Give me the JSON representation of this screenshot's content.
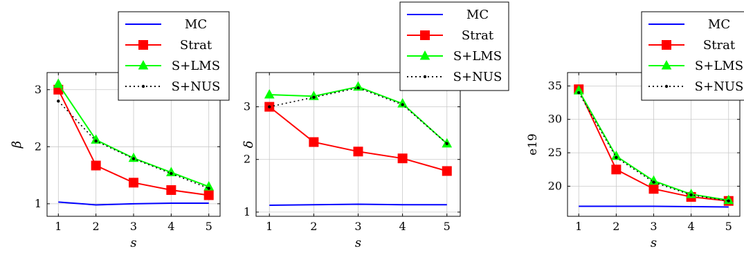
{
  "colors": {
    "MC": "#0000ff",
    "Strat": "#ff0000",
    "S+LMS": "#00ff00",
    "S+NUS": "#000000"
  },
  "legend": [
    "MC",
    "Strat",
    "S+LMS",
    "S+NUS"
  ],
  "chart_data": [
    {
      "type": "line",
      "xlabel": "s",
      "ylabel": "β",
      "x": [
        1,
        2,
        3,
        4,
        5
      ],
      "xlim": [
        0.7,
        5.3
      ],
      "ylim": [
        0.78,
        3.3
      ],
      "yticks": [
        1,
        2,
        3
      ],
      "grid": true,
      "legend_position": "top-right",
      "series": [
        {
          "name": "MC",
          "values": [
            1.03,
            0.98,
            1.0,
            1.01,
            1.01
          ]
        },
        {
          "name": "Strat",
          "values": [
            3.0,
            1.67,
            1.37,
            1.24,
            1.15
          ]
        },
        {
          "name": "S+LMS",
          "values": [
            3.1,
            2.12,
            1.8,
            1.55,
            1.3
          ]
        },
        {
          "name": "S+NUS",
          "values": [
            2.8,
            2.1,
            1.79,
            1.53,
            1.27
          ]
        }
      ]
    },
    {
      "type": "line",
      "xlabel": "s",
      "ylabel": "δ",
      "x": [
        1,
        2,
        3,
        4,
        5
      ],
      "xlim": [
        0.7,
        5.3
      ],
      "ylim": [
        0.92,
        3.65
      ],
      "yticks": [
        1,
        2,
        3
      ],
      "grid": true,
      "legend_position": "top-right",
      "series": [
        {
          "name": "MC",
          "values": [
            1.13,
            1.14,
            1.15,
            1.14,
            1.14
          ]
        },
        {
          "name": "Strat",
          "values": [
            3.0,
            2.33,
            2.15,
            2.02,
            1.78
          ]
        },
        {
          "name": "S+LMS",
          "values": [
            3.23,
            3.2,
            3.38,
            3.06,
            2.3
          ]
        },
        {
          "name": "S+NUS",
          "values": [
            3.0,
            3.18,
            3.36,
            3.04,
            2.3
          ]
        }
      ]
    },
    {
      "type": "line",
      "xlabel": "s",
      "ylabel": "e19",
      "x": [
        1,
        2,
        3,
        4,
        5
      ],
      "xlim": [
        0.7,
        5.3
      ],
      "ylim": [
        15.5,
        37.0
      ],
      "yticks": [
        20,
        25,
        30,
        35
      ],
      "grid": true,
      "legend_position": "top-right",
      "series": [
        {
          "name": "MC",
          "values": [
            17.0,
            17.0,
            17.0,
            16.95,
            16.9
          ]
        },
        {
          "name": "Strat",
          "values": [
            34.5,
            22.5,
            19.6,
            18.4,
            17.8
          ]
        },
        {
          "name": "S+LMS",
          "values": [
            34.3,
            24.5,
            20.8,
            18.8,
            17.9
          ]
        },
        {
          "name": "S+NUS",
          "values": [
            34.0,
            24.3,
            20.6,
            18.7,
            17.8
          ]
        }
      ]
    }
  ]
}
